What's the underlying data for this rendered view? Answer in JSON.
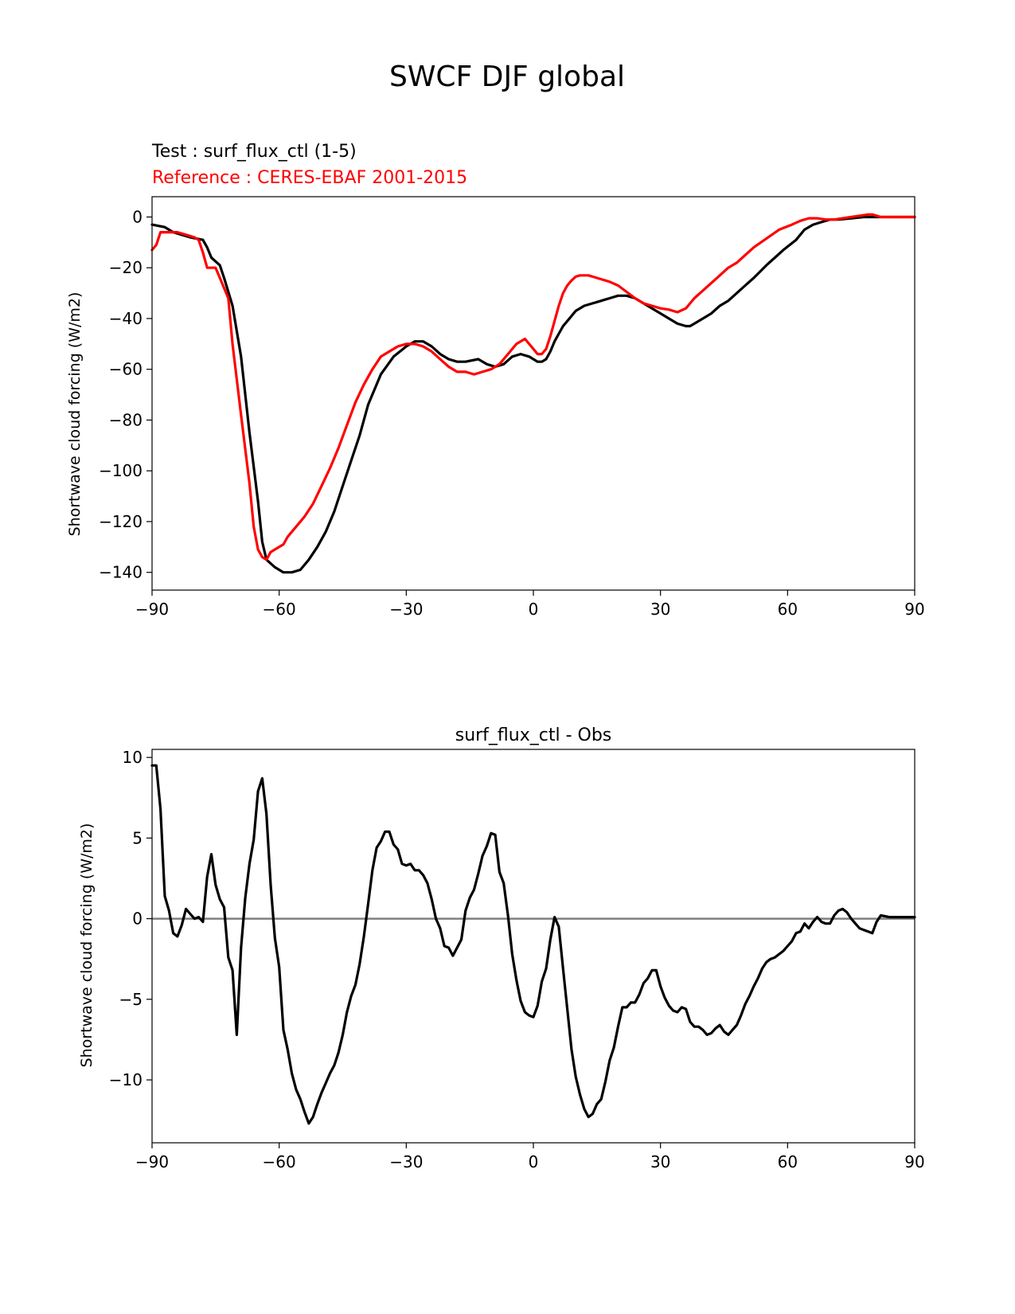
{
  "suptitle": "SWCF DJF global",
  "chart_data": [
    {
      "type": "line",
      "test_label": "Test : surf_flux_ctl (1-5)",
      "reference_label": "Reference : CERES-EBAF 2001-2015",
      "title": "",
      "xlabel": "",
      "ylabel": "Shortwave cloud forcing (W/m2)",
      "xlim": [
        -90,
        90
      ],
      "ylim": [
        -147,
        8
      ],
      "xticks": [
        -90,
        -60,
        -30,
        0,
        30,
        60,
        90
      ],
      "xtick_labels": [
        "−90",
        "−60",
        "−30",
        "0",
        "30",
        "60",
        "90"
      ],
      "yticks": [
        0,
        -20,
        -40,
        -60,
        -80,
        -100,
        -120,
        -140
      ],
      "ytick_labels": [
        "0",
        "−20",
        "−40",
        "−60",
        "−80",
        "−100",
        "−120",
        "−140"
      ],
      "grid": false,
      "series": [
        {
          "color": "#000000",
          "x": [
            -90,
            -87,
            -85,
            -83,
            -81,
            -78,
            -77,
            -76,
            -74,
            -73,
            -71,
            -69,
            -67,
            -65,
            -64,
            -63,
            -61,
            -59,
            -57,
            -55,
            -53,
            -51,
            -49,
            -47,
            -45,
            -43,
            -41,
            -39,
            -36,
            -33,
            -30,
            -28,
            -26,
            -24,
            -22,
            -20,
            -18,
            -16,
            -13,
            -11,
            -9,
            -7,
            -5,
            -3,
            -1,
            0,
            1,
            2,
            3,
            4,
            5,
            6,
            7,
            8,
            9,
            10,
            12,
            14,
            16,
            18,
            20,
            22,
            24,
            26,
            28,
            30,
            32,
            34,
            36,
            37,
            38,
            40,
            42,
            44,
            46,
            48,
            50,
            52,
            55,
            57,
            59,
            62,
            64,
            66,
            68,
            70,
            72,
            75,
            78,
            80,
            83,
            86,
            90
          ],
          "y": [
            -3,
            -4,
            -6,
            -7,
            -8,
            -9,
            -12,
            -16,
            -19,
            -24,
            -35,
            -55,
            -85,
            -112,
            -128,
            -135,
            -138,
            -140,
            -140,
            -139,
            -135,
            -130,
            -124,
            -116,
            -106,
            -96,
            -86,
            -74,
            -62,
            -55,
            -51,
            -49,
            -49,
            -51,
            -54,
            -56,
            -57,
            -57,
            -56,
            -58,
            -59,
            -58,
            -55,
            -54,
            -55,
            -56,
            -57,
            -57,
            -56,
            -53,
            -49,
            -46,
            -43,
            -41,
            -39,
            -37,
            -35,
            -34,
            -33,
            -32,
            -31,
            -31,
            -32,
            -34,
            -36,
            -38,
            -40,
            -42,
            -43,
            -43,
            -42,
            -40,
            -38,
            -35,
            -33,
            -30,
            -27,
            -24,
            -19,
            -16,
            -13,
            -9,
            -5,
            -3,
            -2,
            -1,
            -1,
            -0.5,
            0,
            0,
            0,
            0,
            0
          ]
        },
        {
          "color": "#ff0000",
          "x": [
            -90,
            -89,
            -88,
            -86,
            -84,
            -82,
            -80,
            -79,
            -78,
            -77,
            -75,
            -74,
            -72,
            -71,
            -69,
            -67,
            -66,
            -65,
            -64,
            -63,
            -62,
            -61,
            -60,
            -59,
            -58,
            -56,
            -54,
            -52,
            -50,
            -48,
            -46,
            -44,
            -42,
            -40,
            -38,
            -36,
            -34,
            -32,
            -30,
            -28,
            -26,
            -24,
            -22,
            -20,
            -18,
            -16,
            -14,
            -12,
            -10,
            -9,
            -8,
            -6,
            -4,
            -2,
            -1,
            0,
            1,
            2,
            3,
            4,
            5,
            6,
            7,
            8,
            9,
            10,
            11,
            12,
            13,
            14,
            15,
            16,
            18,
            20,
            22,
            24,
            26,
            28,
            30,
            32,
            34,
            36,
            37,
            38,
            40,
            42,
            44,
            46,
            48,
            50,
            52,
            55,
            58,
            61,
            63,
            65,
            67,
            69,
            71,
            73,
            75,
            77,
            79,
            80,
            82,
            85,
            88,
            90
          ],
          "y": [
            -13,
            -11,
            -6,
            -6,
            -6,
            -7,
            -8,
            -9,
            -14,
            -20,
            -20,
            -24,
            -32,
            -50,
            -78,
            -105,
            -122,
            -131,
            -134,
            -135,
            -132,
            -131,
            -130,
            -129,
            -126,
            -122,
            -118,
            -113,
            -106,
            -99,
            -91,
            -82,
            -73,
            -66,
            -60,
            -55,
            -53,
            -51,
            -50,
            -50,
            -51,
            -53,
            -56,
            -59,
            -61,
            -61,
            -62,
            -61,
            -60,
            -59,
            -58,
            -54,
            -50,
            -48,
            -50,
            -52,
            -54,
            -54,
            -52,
            -47,
            -41,
            -35,
            -30,
            -27,
            -25,
            -23.5,
            -23,
            -23,
            -23,
            -23.5,
            -24,
            -24.5,
            -25.5,
            -27,
            -29.5,
            -32,
            -34,
            -35,
            -36,
            -36.5,
            -37.5,
            -36,
            -34,
            -32,
            -29,
            -26,
            -23,
            -20,
            -18,
            -15,
            -12,
            -8.5,
            -5,
            -3,
            -1.5,
            -0.5,
            -0.5,
            -1,
            -1,
            -0.5,
            0,
            0.5,
            1,
            1,
            0,
            0,
            0,
            0
          ]
        }
      ]
    },
    {
      "type": "line",
      "title": "surf_flux_ctl - Obs",
      "xlabel": "",
      "ylabel": "Shortwave cloud forcing (W/m2)",
      "xlim": [
        -90,
        90
      ],
      "ylim": [
        -13.9,
        10.5
      ],
      "xticks": [
        -90,
        -60,
        -30,
        0,
        30,
        60,
        90
      ],
      "xtick_labels": [
        "−90",
        "−60",
        "−30",
        "0",
        "30",
        "60",
        "90"
      ],
      "yticks": [
        10,
        5,
        0,
        -5,
        -10
      ],
      "ytick_labels": [
        "10",
        "5",
        "0",
        "−5",
        "−10"
      ],
      "grid": false,
      "hline": {
        "y": 0,
        "color": "#808080"
      },
      "series": [
        {
          "color": "#000000",
          "x": [
            -90,
            -89,
            -88,
            -87,
            -86,
            -85,
            -84,
            -83,
            -82,
            -81,
            -80,
            -79,
            -78,
            -77,
            -76,
            -75,
            -74,
            -73,
            -72,
            -71,
            -70,
            -69,
            -68,
            -67,
            -66,
            -65,
            -64,
            -63,
            -62,
            -61,
            -60,
            -59,
            -58,
            -57,
            -56,
            -55,
            -54,
            -53,
            -52,
            -51,
            -50,
            -49,
            -48,
            -47,
            -46,
            -45,
            -44,
            -43,
            -42,
            -41,
            -40,
            -39,
            -38,
            -37,
            -36,
            -35,
            -34,
            -33,
            -32,
            -31,
            -30,
            -29,
            -28,
            -27,
            -26,
            -25,
            -24,
            -23,
            -22,
            -21,
            -20,
            -19,
            -18,
            -17,
            -16,
            -15,
            -14,
            -13,
            -12,
            -11,
            -10,
            -9,
            -8,
            -7,
            -6,
            -5,
            -4,
            -3,
            -2,
            -1,
            0,
            1,
            2,
            3,
            4,
            5,
            6,
            7,
            8,
            9,
            10,
            11,
            12,
            13,
            14,
            15,
            16,
            17,
            18,
            19,
            20,
            21,
            22,
            23,
            24,
            25,
            26,
            27,
            28,
            29,
            30,
            31,
            32,
            33,
            34,
            35,
            36,
            37,
            38,
            39,
            40,
            41,
            42,
            43,
            44,
            45,
            46,
            47,
            48,
            49,
            50,
            51,
            52,
            53,
            54,
            55,
            56,
            57,
            58,
            59,
            60,
            61,
            62,
            63,
            64,
            65,
            66,
            67,
            68,
            69,
            70,
            71,
            72,
            73,
            74,
            75,
            76,
            77,
            78,
            79,
            80,
            81,
            82,
            84,
            86,
            88,
            90
          ],
          "y": [
            9.5,
            9.5,
            6.8,
            1.4,
            0.5,
            -0.9,
            -1.1,
            -0.4,
            0.6,
            0.3,
            0,
            0.1,
            -0.2,
            2.6,
            4,
            2.1,
            1.2,
            0.7,
            -2.4,
            -3.2,
            -7.2,
            -1.8,
            1.3,
            3.4,
            4.9,
            7.9,
            8.7,
            6.5,
            2.1,
            -1.2,
            -3,
            -6.9,
            -8.1,
            -9.6,
            -10.6,
            -11.2,
            -12,
            -12.7,
            -12.3,
            -11.5,
            -10.8,
            -10.2,
            -9.6,
            -9.1,
            -8.3,
            -7.2,
            -5.8,
            -4.8,
            -4.1,
            -2.8,
            -1.1,
            0.9,
            3,
            4.4,
            4.8,
            5.4,
            5.4,
            4.6,
            4.3,
            3.4,
            3.3,
            3.4,
            3,
            3,
            2.7,
            2.2,
            1.2,
            0,
            -0.6,
            -1.7,
            -1.8,
            -2.3,
            -1.8,
            -1.3,
            0.5,
            1.3,
            1.8,
            2.8,
            3.9,
            4.5,
            5.3,
            5.2,
            2.9,
            2.2,
            0.2,
            -2.2,
            -3.8,
            -5.1,
            -5.8,
            -6,
            -6.1,
            -5.4,
            -3.9,
            -3.1,
            -1.3,
            0.1,
            -0.5,
            -3.1,
            -5.6,
            -8.1,
            -9.8,
            -10.9,
            -11.8,
            -12.3,
            -12.1,
            -11.5,
            -11.2,
            -10.1,
            -8.8,
            -8,
            -6.7,
            -5.5,
            -5.5,
            -5.2,
            -5.2,
            -4.7,
            -4,
            -3.7,
            -3.2,
            -3.2,
            -4.2,
            -4.9,
            -5.4,
            -5.7,
            -5.8,
            -5.5,
            -5.6,
            -6.4,
            -6.7,
            -6.7,
            -6.9,
            -7.2,
            -7.1,
            -6.8,
            -6.6,
            -7,
            -7.2,
            -6.9,
            -6.6,
            -6,
            -5.3,
            -4.8,
            -4.2,
            -3.7,
            -3.1,
            -2.7,
            -2.5,
            -2.4,
            -2.2,
            -2,
            -1.7,
            -1.4,
            -0.9,
            -0.8,
            -0.3,
            -0.6,
            -0.2,
            0.1,
            -0.2,
            -0.3,
            -0.3,
            0.2,
            0.5,
            0.6,
            0.4,
            0,
            -0.3,
            -0.6,
            -0.7,
            -0.8,
            -0.9,
            -0.2,
            0.2,
            0.1,
            0.1,
            0.1,
            0.1
          ]
        }
      ]
    }
  ]
}
